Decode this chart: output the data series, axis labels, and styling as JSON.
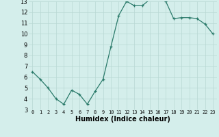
{
  "x": [
    0,
    1,
    2,
    3,
    4,
    5,
    6,
    7,
    8,
    9,
    10,
    11,
    12,
    13,
    14,
    15,
    16,
    17,
    18,
    19,
    20,
    21,
    22,
    23
  ],
  "y": [
    6.5,
    5.8,
    5.0,
    4.0,
    3.5,
    4.8,
    4.4,
    3.5,
    4.7,
    5.8,
    8.8,
    11.7,
    13.0,
    12.6,
    12.6,
    13.2,
    13.3,
    13.0,
    11.4,
    11.5,
    11.5,
    11.4,
    10.9,
    10.0
  ],
  "xlabel": "Humidex (Indice chaleur)",
  "ylim": [
    3,
    13
  ],
  "xlim": [
    -0.5,
    23.5
  ],
  "yticks": [
    3,
    4,
    5,
    6,
    7,
    8,
    9,
    10,
    11,
    12,
    13
  ],
  "xticks": [
    0,
    1,
    2,
    3,
    4,
    5,
    6,
    7,
    8,
    9,
    10,
    11,
    12,
    13,
    14,
    15,
    16,
    17,
    18,
    19,
    20,
    21,
    22,
    23
  ],
  "line_color": "#2a7a6a",
  "marker_color": "#2a7a6a",
  "bg_color": "#d4eeeb",
  "grid_color": "#b8d8d4",
  "axes_bg": "#d4eeeb",
  "tick_fontsize": 5,
  "xlabel_fontsize": 7
}
